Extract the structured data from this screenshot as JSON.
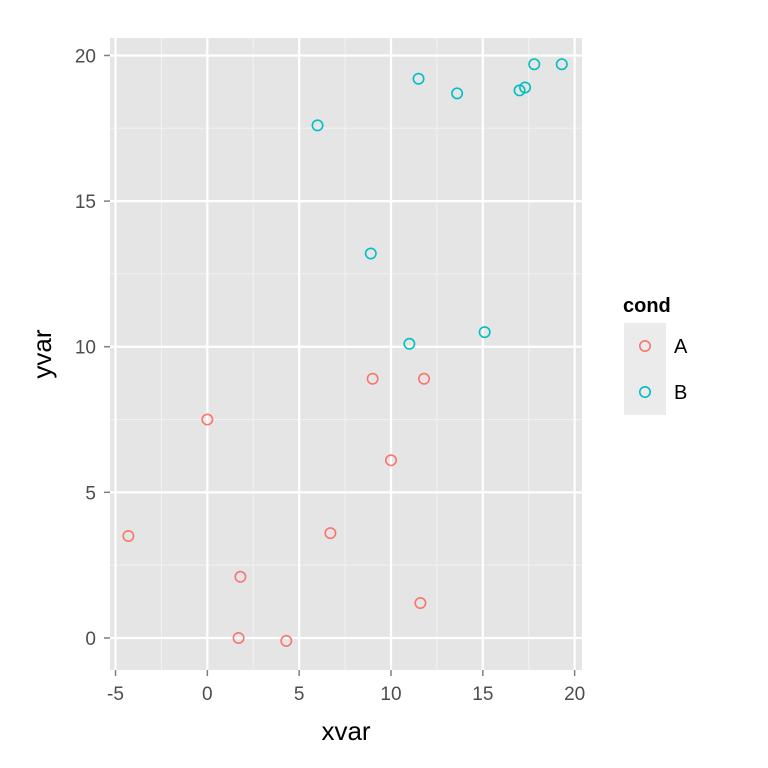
{
  "chart_data": {
    "type": "scatter",
    "xlabel": "xvar",
    "ylabel": "yvar",
    "xlim": [
      -5.3,
      20.4
    ],
    "ylim": [
      -1.1,
      20.6
    ],
    "x_ticks": [
      -5,
      0,
      5,
      10,
      15,
      20
    ],
    "y_ticks": [
      0,
      5,
      10,
      15,
      20
    ],
    "x_tick_labels": [
      "-5",
      "0",
      "5",
      "10",
      "15",
      "20"
    ],
    "y_tick_labels": [
      "0",
      "5",
      "10",
      "15",
      "20"
    ],
    "grid": true,
    "background_color": "#e5e5e5",
    "legend": {
      "title": "cond",
      "position": "right",
      "entries": [
        {
          "label": "A",
          "color": "#f8766d"
        },
        {
          "label": "B",
          "color": "#00bfc4"
        }
      ]
    },
    "series": [
      {
        "name": "A",
        "color": "#f8766d",
        "points": [
          {
            "x": -4.3,
            "y": 3.5
          },
          {
            "x": 0.0,
            "y": 7.5
          },
          {
            "x": 1.7,
            "y": 0.0
          },
          {
            "x": 1.8,
            "y": 2.1
          },
          {
            "x": 4.3,
            "y": -0.1
          },
          {
            "x": 6.7,
            "y": 3.6
          },
          {
            "x": 9.0,
            "y": 8.9
          },
          {
            "x": 10.0,
            "y": 6.1
          },
          {
            "x": 11.6,
            "y": 1.2
          },
          {
            "x": 11.8,
            "y": 8.9
          }
        ]
      },
      {
        "name": "B",
        "color": "#00bfc4",
        "points": [
          {
            "x": 6.0,
            "y": 17.6
          },
          {
            "x": 8.9,
            "y": 13.2
          },
          {
            "x": 11.0,
            "y": 10.1
          },
          {
            "x": 11.5,
            "y": 19.2
          },
          {
            "x": 13.6,
            "y": 18.7
          },
          {
            "x": 15.1,
            "y": 10.5
          },
          {
            "x": 17.0,
            "y": 18.8
          },
          {
            "x": 17.3,
            "y": 18.9
          },
          {
            "x": 17.8,
            "y": 19.7
          },
          {
            "x": 19.3,
            "y": 19.7
          }
        ]
      }
    ]
  }
}
